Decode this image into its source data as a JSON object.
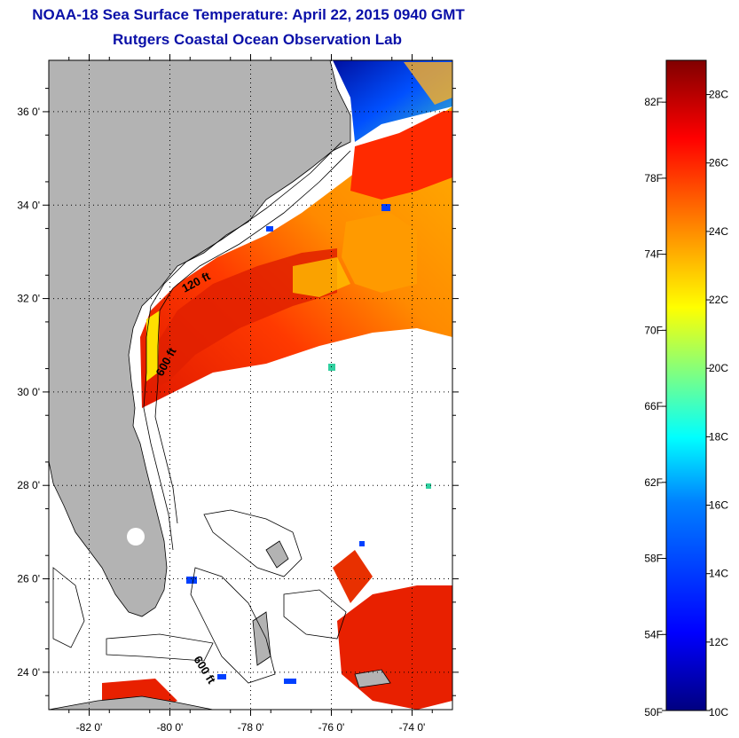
{
  "title": {
    "line1": "NOAA-18 Sea Surface Temperature:  April 22, 2015 0940 GMT",
    "line2": "Rutgers Coastal Ocean Observation Lab"
  },
  "map": {
    "region": "U.S. Southeast Atlantic coast and Bahamas",
    "lon_range": [
      -83,
      -73
    ],
    "lat_range": [
      23.2,
      37.1
    ],
    "lon_ticks": [
      {
        "value": -82,
        "label": "-82 0'"
      },
      {
        "value": -80,
        "label": "-80 0'"
      },
      {
        "value": -78,
        "label": "-78 0'"
      },
      {
        "value": -76,
        "label": "-76 0'"
      },
      {
        "value": -74,
        "label": "-74 0'"
      }
    ],
    "lat_ticks": [
      {
        "value": 24,
        "label": "24 0'"
      },
      {
        "value": 26,
        "label": "26 0'"
      },
      {
        "value": 28,
        "label": "28 0'"
      },
      {
        "value": 30,
        "label": "30 0'"
      },
      {
        "value": 32,
        "label": "32 0'"
      },
      {
        "value": 34,
        "label": "34 0'"
      },
      {
        "value": 36,
        "label": "36 0'"
      }
    ],
    "grid": "dotted",
    "land_color": "#b3b3b3",
    "contour_labels": [
      "120 ft",
      "600 ft",
      "600 ft"
    ]
  },
  "colorbar": {
    "min_c": 10,
    "max_c": 29,
    "fahrenheit_labels": [
      "82F",
      "78F",
      "74F",
      "70F",
      "66F",
      "62F",
      "58F",
      "54F",
      "50F"
    ],
    "celsius_labels": [
      "28C",
      "26C",
      "24C",
      "22C",
      "20C",
      "18C",
      "16C",
      "14C",
      "12C",
      "10C"
    ],
    "colors": [
      "#000080",
      "#0000ff",
      "#0080ff",
      "#00ffff",
      "#80ff80",
      "#ffff00",
      "#ff8000",
      "#ff0000",
      "#800000"
    ]
  }
}
